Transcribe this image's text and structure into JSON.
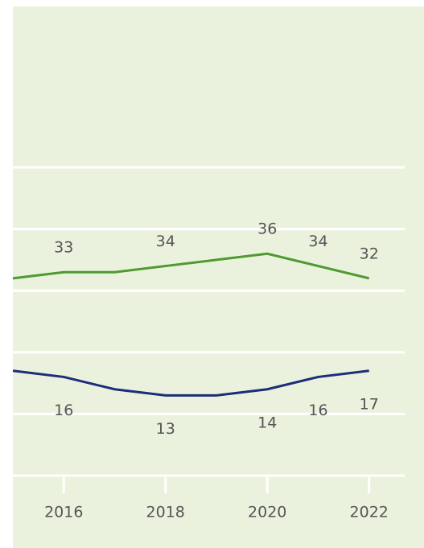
{
  "chart_data": {
    "type": "line",
    "x": [
      2015,
      2016,
      2017,
      2018,
      2019,
      2020,
      2021,
      2022
    ],
    "series": [
      {
        "color": "#4f9a2f",
        "values": [
          32,
          33,
          33,
          34,
          35,
          36,
          34,
          32
        ],
        "labeled": [
          false,
          true,
          false,
          true,
          false,
          true,
          true,
          true
        ],
        "label_side": "above"
      },
      {
        "color": "#1d2d78",
        "values": [
          17,
          16,
          14,
          13,
          13,
          14,
          16,
          17
        ],
        "labeled": [
          false,
          true,
          false,
          true,
          false,
          true,
          true,
          true
        ],
        "label_side": "below"
      }
    ],
    "xlim": [
      2015,
      2022.7
    ],
    "xticks": [
      2016,
      2018,
      2020,
      2022
    ],
    "ylim": [
      0,
      50
    ],
    "yticks": [
      0,
      10,
      20,
      30,
      40,
      50
    ],
    "grid": true
  }
}
